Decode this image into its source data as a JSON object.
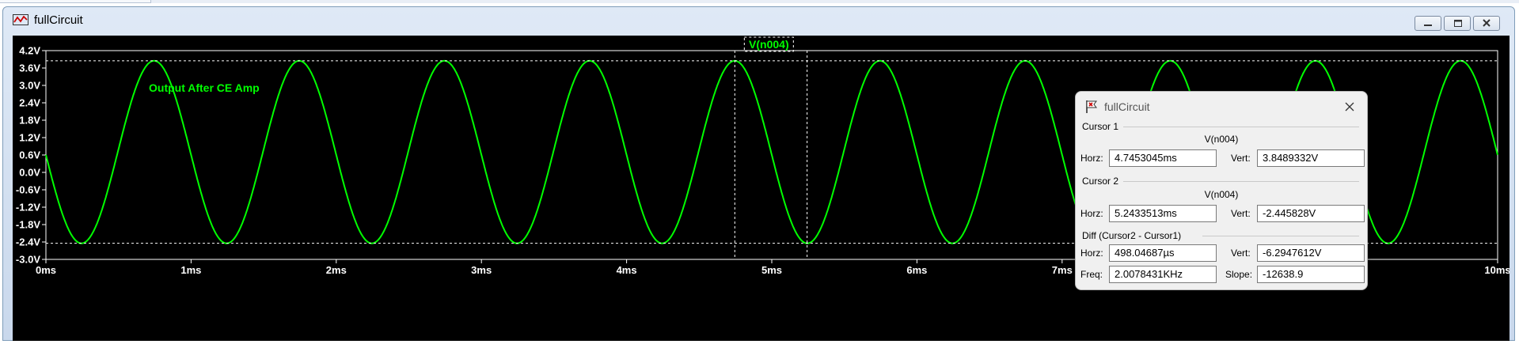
{
  "window": {
    "title": "fullCircuit",
    "minimize_icon": "minimize-icon",
    "restore_icon": "restore-icon",
    "close_icon": "close-icon"
  },
  "colors": {
    "trace": "#00ff00",
    "background": "#000000",
    "axis_text": "#ffffff"
  },
  "chart_data": {
    "type": "line",
    "trace_label": "V(n004)",
    "annotation": "Output After CE Amp",
    "x": {
      "unit": "ms",
      "range": [
        0,
        10
      ],
      "ticks": [
        0,
        1,
        2,
        3,
        4,
        5,
        6,
        7,
        8,
        9,
        10
      ],
      "tick_labels": [
        "0ms",
        "1ms",
        "2ms",
        "3ms",
        "4ms",
        "5ms",
        "6ms",
        "7ms",
        "8ms",
        "9ms",
        "10ms"
      ]
    },
    "y": {
      "unit": "V",
      "range": [
        -3.0,
        4.2
      ],
      "ticks": [
        4.2,
        3.6,
        3.0,
        2.4,
        1.8,
        1.2,
        0.6,
        0.0,
        -0.6,
        -1.2,
        -1.8,
        -2.4,
        -3.0
      ],
      "tick_labels": [
        "4.2V",
        "3.6V",
        "3.0V",
        "2.4V",
        "1.8V",
        "1.2V",
        "0.6V",
        "0.0V",
        "-0.6V",
        "-1.2V",
        "-1.8V",
        "-2.4V",
        "-3.0V"
      ]
    },
    "series": [
      {
        "name": "V(n004)",
        "waveform": "sine",
        "frequency_khz": 1.0,
        "peak_v": 3.849,
        "trough_v": -2.446,
        "first_peak_ms": 0.745,
        "value_at_0ms": 0.7,
        "value_at_10ms": 1.0
      }
    ],
    "cursors": [
      {
        "name": "Cursor 1",
        "x_ms": 4.7453045,
        "y_v": 3.8489332
      },
      {
        "name": "Cursor 2",
        "x_ms": 5.2433513,
        "y_v": -2.445828
      }
    ]
  },
  "cursor_dialog": {
    "title": "fullCircuit",
    "close_icon": "close-icon",
    "cursor1": {
      "label": "Cursor 1",
      "trace": "V(n004)",
      "horz_label": "Horz:",
      "horz": "4.7453045ms",
      "vert_label": "Vert:",
      "vert": "3.8489332V"
    },
    "cursor2": {
      "label": "Cursor 2",
      "trace": "V(n004)",
      "horz_label": "Horz:",
      "horz": "5.2433513ms",
      "vert_label": "Vert:",
      "vert": "-2.445828V"
    },
    "diff": {
      "label": "Diff (Cursor2 - Cursor1)",
      "horz_label": "Horz:",
      "horz": "498.04687µs",
      "vert_label": "Vert:",
      "vert": "-6.2947612V",
      "freq_label": "Freq:",
      "freq": "2.0078431KHz",
      "slope_label": "Slope:",
      "slope": "-12638.9"
    }
  }
}
